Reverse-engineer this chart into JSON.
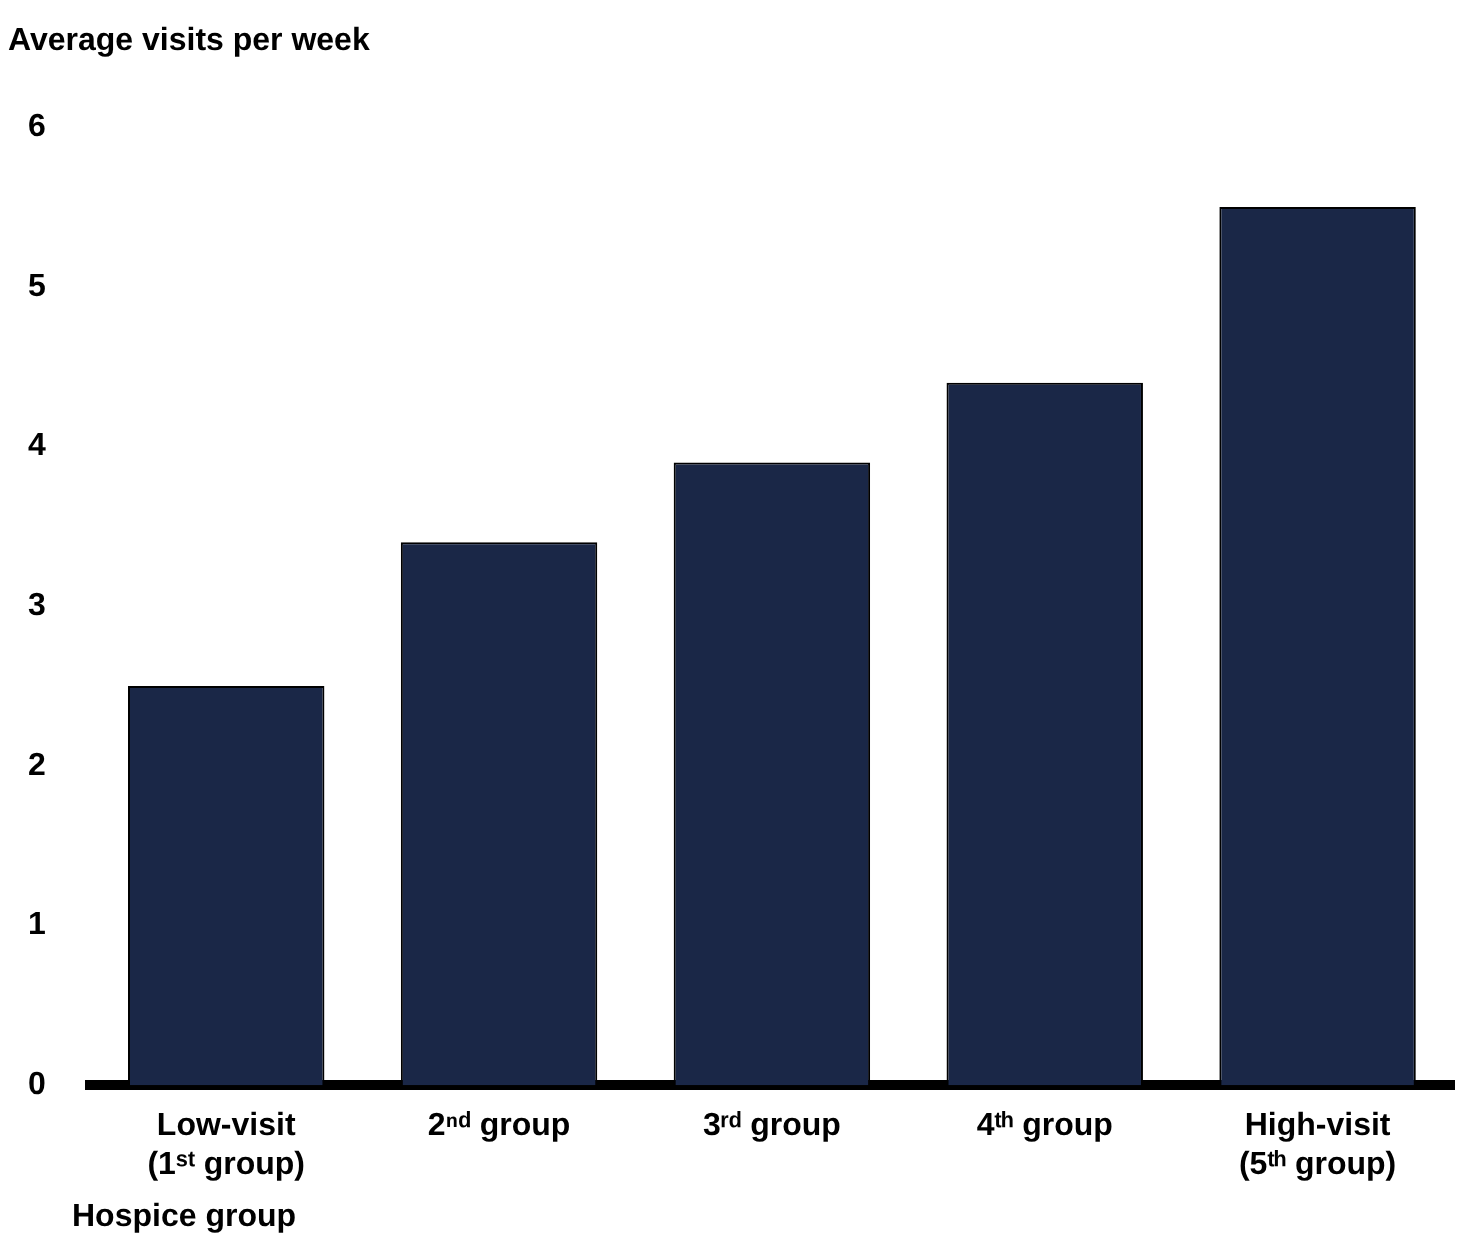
{
  "chart_data": {
    "type": "bar",
    "ylabel": "Average visits per week",
    "xlabel": "Hospice group",
    "categories": [
      "Low-visit\n(1ˢᵗ group)",
      "2ⁿᵈ group",
      "3ʳᵈ group",
      "4ᵗʰ group",
      "High-visit\n(5ᵗʰ group)"
    ],
    "values": [
      2.5,
      3.4,
      3.9,
      4.4,
      5.5
    ],
    "color": "#1a2747",
    "ylim": [
      0,
      6
    ],
    "yticks": [
      0,
      1,
      2,
      3,
      4,
      5,
      6
    ],
    "grid": false,
    "legend": false
  }
}
